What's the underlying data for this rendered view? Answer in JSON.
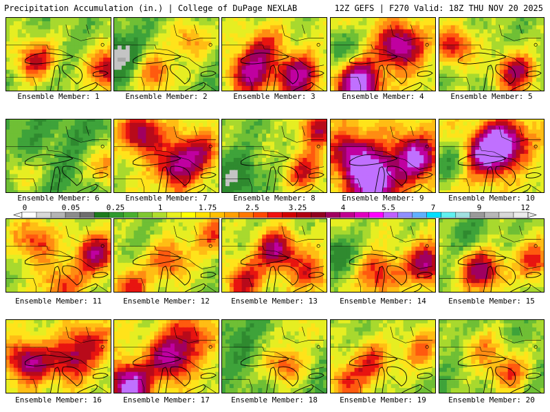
{
  "header": {
    "title": "Precipitation Accumulation (in.) | College of DuPage NEXLAB",
    "run_info": "12Z GEFS | F270 Valid: 18Z THU NOV 20 2025"
  },
  "panels": [
    {
      "label": "Ensemble Member: 1"
    },
    {
      "label": "Ensemble Member: 2"
    },
    {
      "label": "Ensemble Member: 3"
    },
    {
      "label": "Ensemble Member: 4"
    },
    {
      "label": "Ensemble Member: 5"
    },
    {
      "label": "Ensemble Member: 6"
    },
    {
      "label": "Ensemble Member: 7"
    },
    {
      "label": "Ensemble Member: 8"
    },
    {
      "label": "Ensemble Member: 9"
    },
    {
      "label": "Ensemble Member: 10"
    },
    {
      "label": "Ensemble Member: 11"
    },
    {
      "label": "Ensemble Member: 12"
    },
    {
      "label": "Ensemble Member: 13"
    },
    {
      "label": "Ensemble Member: 14"
    },
    {
      "label": "Ensemble Member: 15"
    },
    {
      "label": "Ensemble Member: 16"
    },
    {
      "label": "Ensemble Member: 17"
    },
    {
      "label": "Ensemble Member: 18"
    },
    {
      "label": "Ensemble Member: 19"
    },
    {
      "label": "Ensemble Member: 20"
    }
  ],
  "colorbar": {
    "tick_labels": [
      "0",
      "0.05",
      "0.25",
      "1",
      "1.75",
      "2.5",
      "3.25",
      "4",
      "5.5",
      "7",
      "9",
      "12"
    ],
    "colors": [
      "#ffffff",
      "#d8d8d8",
      "#b4b4b4",
      "#8c8c8c",
      "#6e6e6e",
      "#1d7b1d",
      "#2f9a2f",
      "#49b02f",
      "#7fc832",
      "#b0de2e",
      "#e8f020",
      "#ffff00",
      "#ffe000",
      "#ffc000",
      "#ffa000",
      "#ff7800",
      "#ff4800",
      "#f01010",
      "#d00000",
      "#b00010",
      "#900020",
      "#a00060",
      "#c00090",
      "#e000c0",
      "#ff00ff",
      "#c060ff",
      "#9090ff",
      "#60b0ff",
      "#00e0ff",
      "#60f0f0",
      "#a0e0e0",
      "#9a9a9a",
      "#b8b8b8",
      "#d8d8d8",
      "#ececec"
    ]
  }
}
